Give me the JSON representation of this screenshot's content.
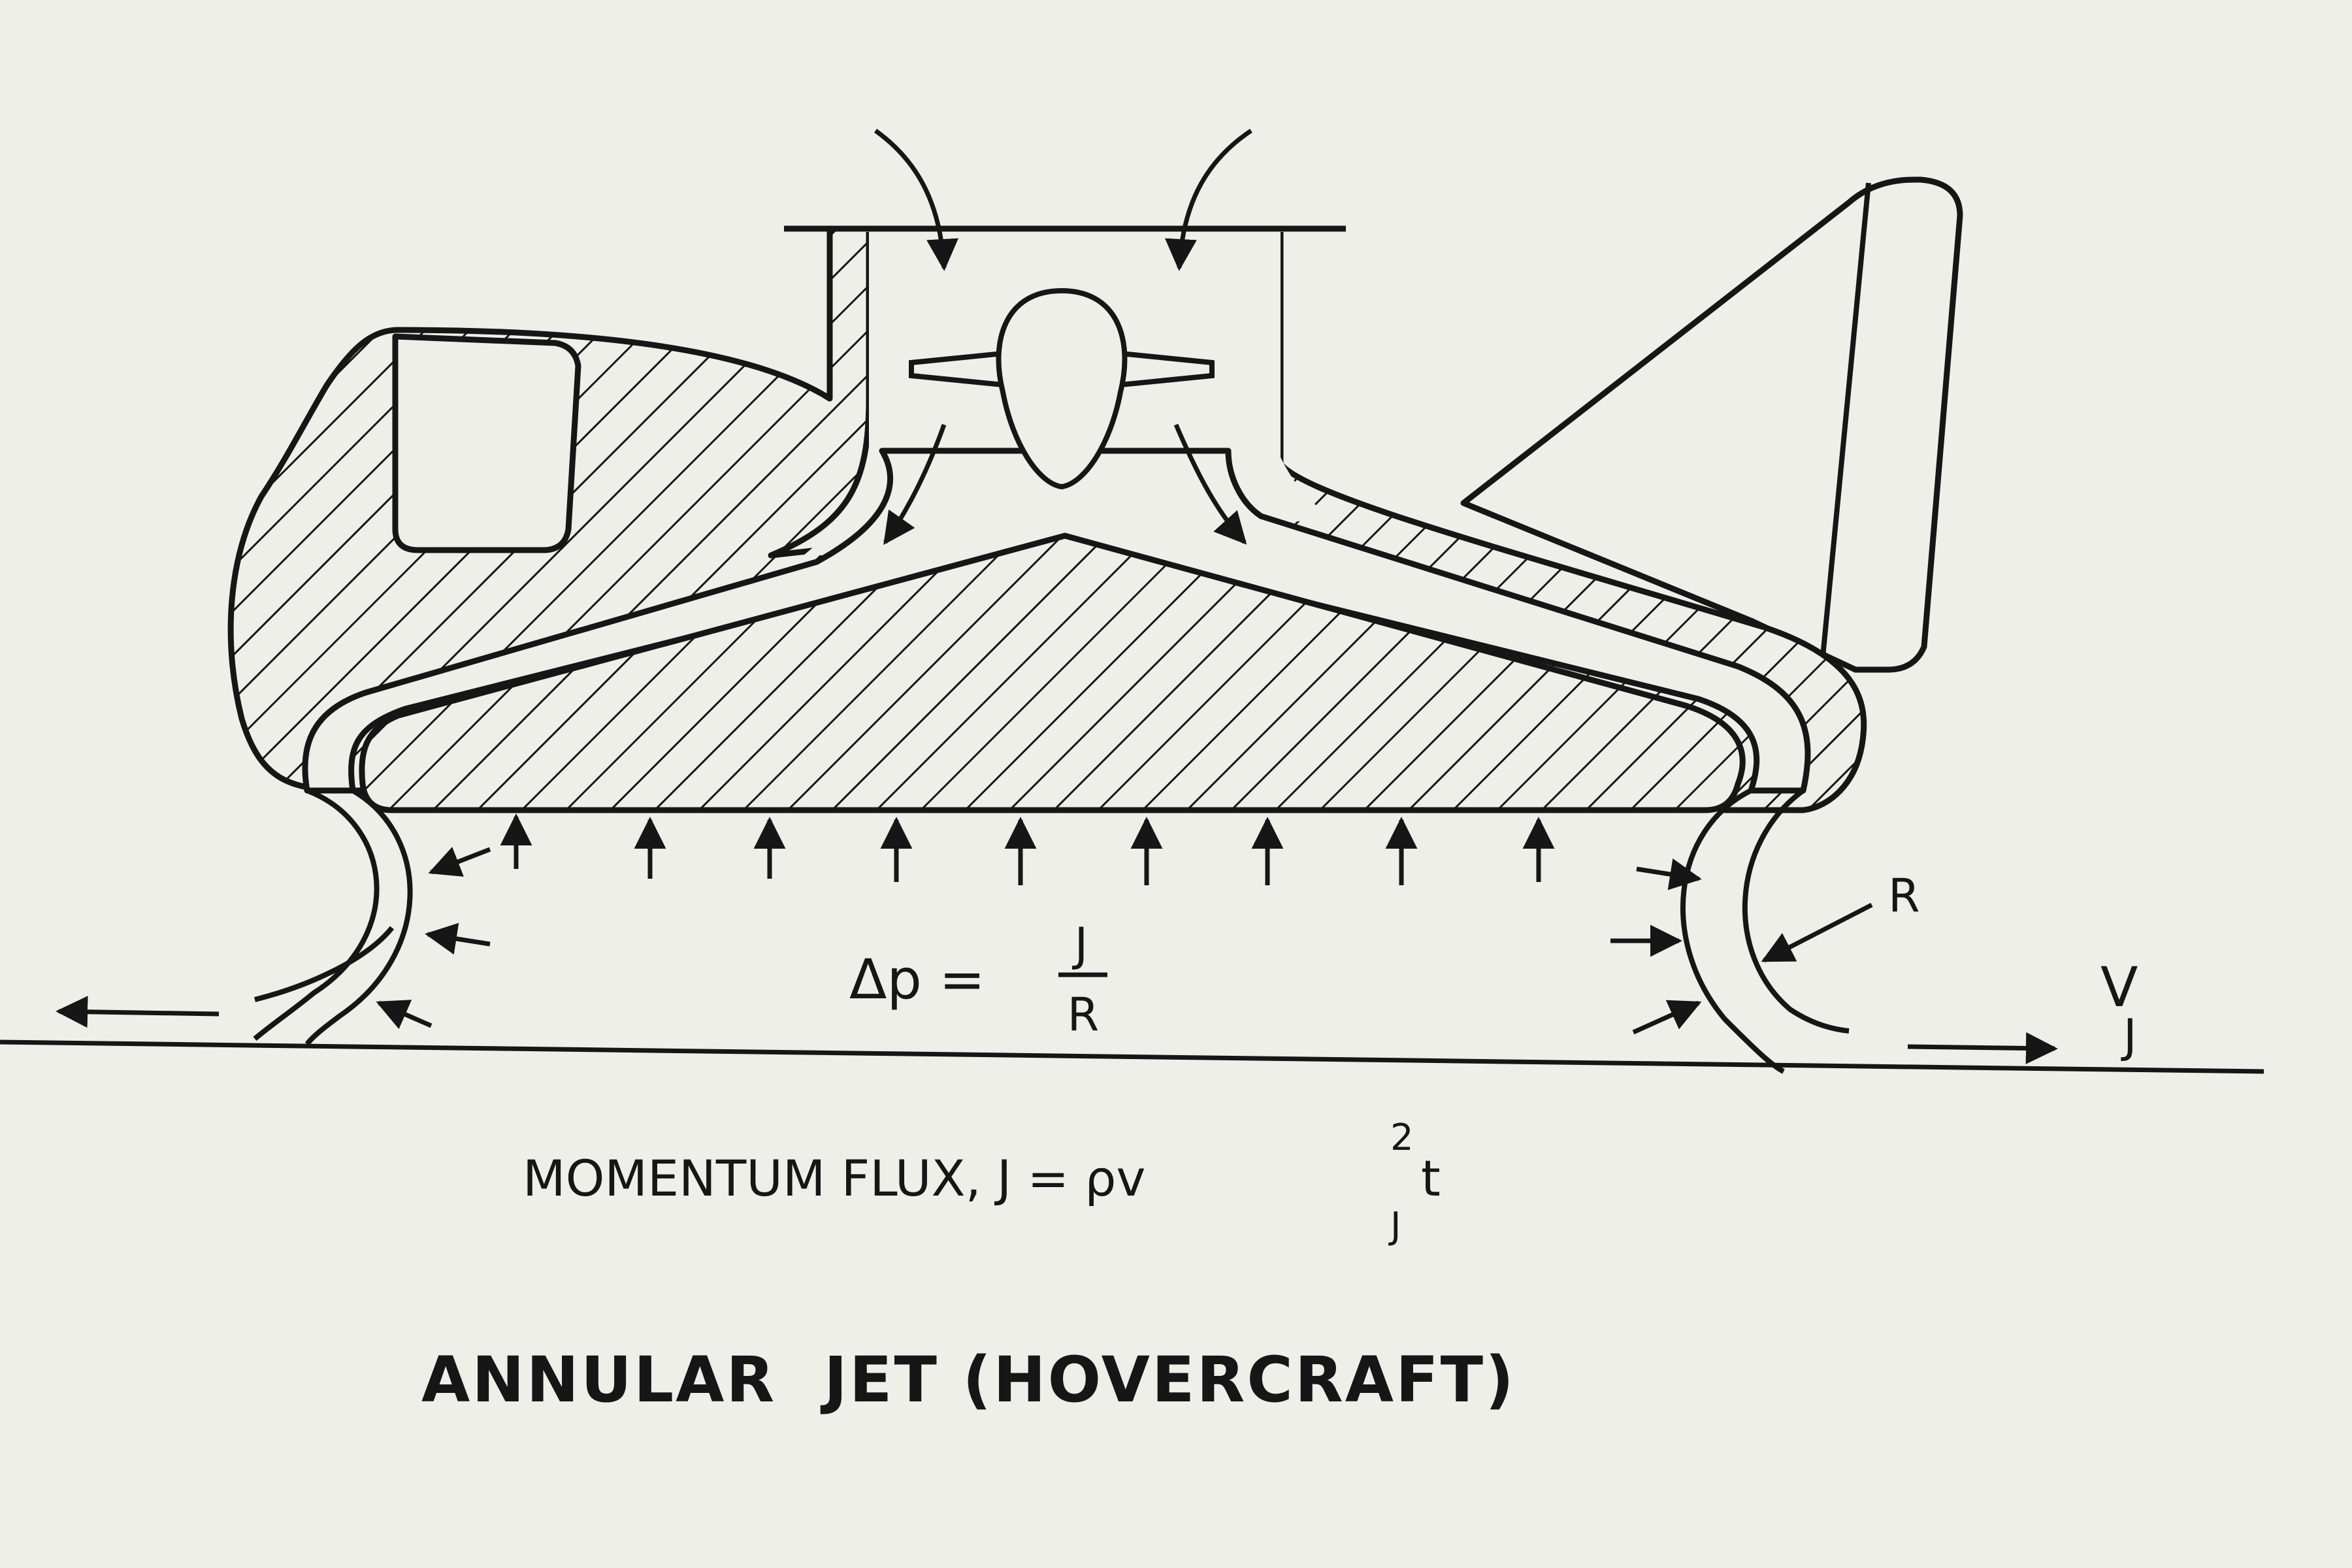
{
  "diagram": {
    "equation": {
      "lhs": "Δp =",
      "numerator": "J",
      "denominator": "R"
    },
    "radius_label": "R",
    "velocity_label": {
      "main": "V",
      "sub": "J"
    },
    "momentum_flux": {
      "prefix": "MOMENTUM FLUX, J = ρv",
      "superscript": "2",
      "subscript": "J",
      "suffix": " t"
    },
    "title": "ANNULAR  JET (HOVERCRAFT)",
    "colors": {
      "background": "#efefea",
      "ink": "#161616"
    }
  }
}
